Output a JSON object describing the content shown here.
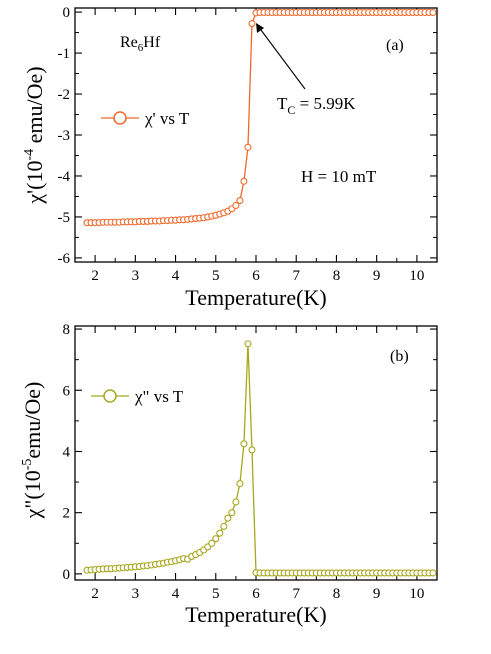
{
  "colors": {
    "panel_a": "#ee6a2c",
    "panel_b": "#a8a820",
    "axis": "#000000"
  },
  "chart_data": [
    {
      "panel": "(a)",
      "type": "line",
      "marker": "open-circle",
      "xlabel": "Temperature(K)",
      "ylabel": "χ'(10",
      "ylabel_exp": "-4",
      "ylabel_unit": " emu/Oe)",
      "xlim": [
        1.5,
        10.5
      ],
      "ylim": [
        -6.1,
        0.1
      ],
      "xticks": [
        2,
        3,
        4,
        5,
        6,
        7,
        8,
        9,
        10
      ],
      "yticks": [
        -6,
        -5,
        -4,
        -3,
        -2,
        -1,
        0
      ],
      "ytick_labels": [
        "-6",
        "-5",
        "-4",
        "-3",
        "-2",
        "-1",
        "0"
      ],
      "annotations": {
        "compound_base": "Re",
        "compound_sub": "6",
        "compound_end": "Hf",
        "panel_label": "(a)",
        "tc_base": "T",
        "tc_sub": "C",
        "tc_value": " = 5.99K",
        "field": "H = 10 mT"
      },
      "legend": "χ' vs T",
      "series": [
        {
          "name": "χ' vs T",
          "x": [
            1.8,
            1.9,
            2.0,
            2.1,
            2.2,
            2.3,
            2.4,
            2.5,
            2.6,
            2.7,
            2.8,
            2.9,
            3.0,
            3.1,
            3.2,
            3.3,
            3.4,
            3.5,
            3.6,
            3.7,
            3.8,
            3.9,
            4.0,
            4.1,
            4.2,
            4.3,
            4.4,
            4.5,
            4.6,
            4.7,
            4.8,
            4.9,
            5.0,
            5.1,
            5.2,
            5.3,
            5.4,
            5.5,
            5.6,
            5.7,
            5.8,
            5.9,
            6.0,
            6.1,
            6.2,
            6.3,
            6.4,
            6.5,
            6.6,
            6.7,
            6.8,
            6.9,
            7.0,
            7.1,
            7.2,
            7.3,
            7.4,
            7.5,
            7.6,
            7.7,
            7.8,
            7.9,
            8.0,
            8.1,
            8.2,
            8.3,
            8.4,
            8.5,
            8.6,
            8.7,
            8.8,
            8.9,
            9.0,
            9.1,
            9.2,
            9.3,
            9.4,
            9.5,
            9.6,
            9.7,
            9.8,
            9.9,
            10.0,
            10.1,
            10.2,
            10.3,
            10.4
          ],
          "y": [
            -5.14,
            -5.14,
            -5.14,
            -5.14,
            -5.13,
            -5.13,
            -5.13,
            -5.13,
            -5.13,
            -5.12,
            -5.12,
            -5.12,
            -5.12,
            -5.11,
            -5.11,
            -5.11,
            -5.1,
            -5.1,
            -5.1,
            -5.09,
            -5.09,
            -5.08,
            -5.08,
            -5.07,
            -5.07,
            -5.06,
            -5.05,
            -5.04,
            -5.03,
            -5.02,
            -5.0,
            -4.98,
            -4.96,
            -4.93,
            -4.9,
            -4.86,
            -4.8,
            -4.72,
            -4.6,
            -4.13,
            -3.3,
            -0.28,
            -0.02,
            -0.01,
            -0.01,
            -0.01,
            -0.01,
            -0.01,
            -0.01,
            -0.01,
            -0.01,
            -0.01,
            -0.01,
            -0.01,
            -0.01,
            -0.01,
            -0.01,
            -0.01,
            -0.01,
            -0.01,
            -0.01,
            -0.01,
            -0.01,
            -0.01,
            -0.01,
            -0.01,
            -0.01,
            -0.01,
            -0.01,
            -0.01,
            -0.01,
            -0.01,
            -0.01,
            -0.01,
            -0.01,
            -0.01,
            -0.01,
            -0.01,
            -0.01,
            -0.01,
            -0.01,
            -0.01,
            -0.01,
            -0.01,
            -0.01,
            -0.01,
            -0.01
          ]
        }
      ]
    },
    {
      "panel": "(b)",
      "type": "line",
      "marker": "open-circle",
      "xlabel": "Temperature(K)",
      "ylabel": "χ\"(10",
      "ylabel_exp": "-5",
      "ylabel_unit": "emu/Oe)",
      "xlim": [
        1.5,
        10.5
      ],
      "ylim": [
        -0.2,
        8.1
      ],
      "xticks": [
        2,
        3,
        4,
        5,
        6,
        7,
        8,
        9,
        10
      ],
      "yticks": [
        0,
        2,
        4,
        6,
        8
      ],
      "ytick_labels": [
        "0",
        "2",
        "4",
        "6",
        "8"
      ],
      "annotations": {
        "panel_label": "(b)"
      },
      "legend": "χ\" vs T",
      "series": [
        {
          "name": "χ\" vs T",
          "x": [
            1.8,
            1.9,
            2.0,
            2.1,
            2.2,
            2.3,
            2.4,
            2.5,
            2.6,
            2.7,
            2.8,
            2.9,
            3.0,
            3.1,
            3.2,
            3.3,
            3.4,
            3.5,
            3.6,
            3.7,
            3.8,
            3.9,
            4.0,
            4.1,
            4.2,
            4.3,
            4.4,
            4.5,
            4.6,
            4.7,
            4.8,
            4.9,
            5.0,
            5.1,
            5.2,
            5.3,
            5.4,
            5.5,
            5.6,
            5.7,
            5.8,
            5.9,
            6.0,
            6.1,
            6.2,
            6.3,
            6.4,
            6.5,
            6.6,
            6.7,
            6.8,
            6.9,
            7.0,
            7.1,
            7.2,
            7.3,
            7.4,
            7.5,
            7.6,
            7.7,
            7.8,
            7.9,
            8.0,
            8.1,
            8.2,
            8.3,
            8.4,
            8.5,
            8.6,
            8.7,
            8.8,
            8.9,
            9.0,
            9.1,
            9.2,
            9.3,
            9.4,
            9.5,
            9.6,
            9.7,
            9.8,
            9.9,
            10.0,
            10.1,
            10.2,
            10.3,
            10.4
          ],
          "y": [
            0.12,
            0.13,
            0.14,
            0.15,
            0.16,
            0.17,
            0.17,
            0.18,
            0.19,
            0.2,
            0.21,
            0.22,
            0.23,
            0.24,
            0.26,
            0.27,
            0.29,
            0.31,
            0.33,
            0.35,
            0.38,
            0.4,
            0.43,
            0.46,
            0.5,
            0.48,
            0.57,
            0.63,
            0.7,
            0.78,
            0.88,
            1.0,
            1.15,
            1.33,
            1.55,
            1.82,
            2.0,
            2.35,
            2.95,
            4.25,
            7.52,
            4.05,
            0.04,
            0.03,
            0.03,
            0.03,
            0.03,
            0.03,
            0.03,
            0.03,
            0.03,
            0.03,
            0.03,
            0.03,
            0.03,
            0.03,
            0.03,
            0.03,
            0.03,
            0.03,
            0.03,
            0.03,
            0.03,
            0.03,
            0.03,
            0.03,
            0.03,
            0.03,
            0.03,
            0.03,
            0.03,
            0.03,
            0.03,
            0.03,
            0.03,
            0.03,
            0.03,
            0.03,
            0.03,
            0.03,
            0.03,
            0.03,
            0.03,
            0.03,
            0.03,
            0.03,
            0.03
          ]
        }
      ]
    }
  ]
}
